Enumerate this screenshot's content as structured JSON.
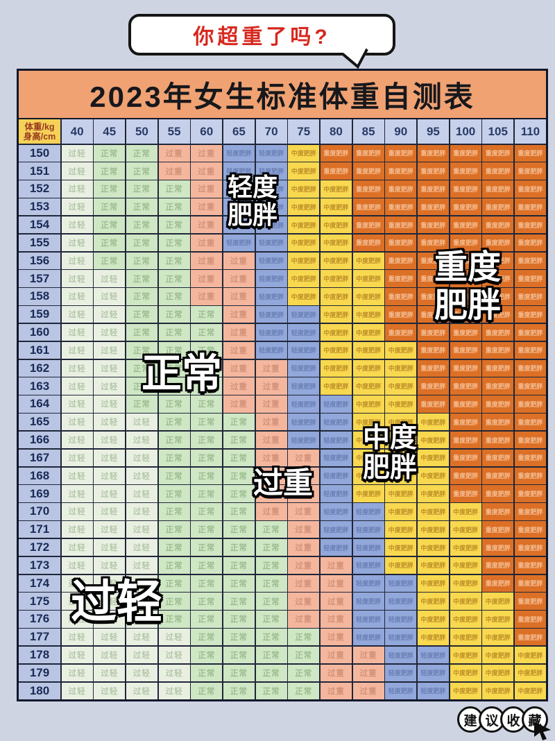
{
  "bubble": {
    "text": "你超重了吗?"
  },
  "title": "2023年女生标准体重自测表",
  "corner": {
    "top": "体重/kg",
    "bottom": "身高/cm"
  },
  "categories": {
    "U": {
      "label": "过轻",
      "bg": "#e9f0e2",
      "fg": "#b3c6a8"
    },
    "N": {
      "label": "正常",
      "bg": "#cfe7c4",
      "fg": "#9cbd90"
    },
    "O": {
      "label": "过重",
      "bg": "#f4b79e",
      "fg": "#d29279"
    },
    "L": {
      "label": "轻度肥胖",
      "bg": "#92a7da",
      "fg": "#6a80b5"
    },
    "M": {
      "label": "中度肥胖",
      "bg": "#f8d84f",
      "fg": "#bd8f28"
    },
    "S": {
      "label": "重度肥胖",
      "bg": "#dc7026",
      "fg": "#f4bd92"
    }
  },
  "overlays": [
    {
      "id": "mild-obese",
      "lines": [
        "轻度",
        "肥胖"
      ]
    },
    {
      "id": "severe-obese",
      "lines": [
        "重度",
        "肥胖"
      ]
    },
    {
      "id": "normal",
      "lines": [
        "正常"
      ]
    },
    {
      "id": "moderate-obese",
      "lines": [
        "中度",
        "肥胖"
      ]
    },
    {
      "id": "overweight",
      "lines": [
        "过重"
      ]
    },
    {
      "id": "underweight",
      "lines": [
        "过轻"
      ]
    }
  ],
  "badge": {
    "chars": [
      "建",
      "议",
      "收",
      "藏"
    ]
  },
  "chart_data": {
    "type": "table",
    "title": "2023年女生标准体重自测表",
    "col_header_label": "体重/kg",
    "row_header_label": "身高/cm",
    "columns_weights_kg": [
      40,
      45,
      50,
      55,
      60,
      65,
      70,
      75,
      80,
      85,
      90,
      95,
      100,
      105,
      110
    ],
    "rows_heights_cm": [
      150,
      151,
      152,
      153,
      154,
      155,
      156,
      157,
      158,
      159,
      160,
      161,
      162,
      163,
      164,
      165,
      166,
      167,
      168,
      169,
      170,
      171,
      172,
      173,
      174,
      175,
      176,
      177,
      178,
      179,
      180
    ],
    "legend": {
      "U": "过轻",
      "N": "正常",
      "O": "过重",
      "L": "轻度肥胖",
      "M": "中度肥胖",
      "S": "重度肥胖"
    },
    "cells": [
      "UNNOOLLMSSSSSSS",
      "UNNOOLLMSSSSSSS",
      "UNNNOLLMMSSSSSS",
      "UNNNOLLMMSSSSSS",
      "UNNNOLLMMSSSSSS",
      "UNNNOLLMMSSSSSS",
      "UNNNOOLMMMSSSSS",
      "UUNNOOLMMMSSSSS",
      "UUNNOOLMMMSSSSS",
      "UUNNNOLLMMSSSSS",
      "UUNNNOLLMMSSSSS",
      "UUNNNOLLMMMSSSS",
      "UUNNNOOLMMMSSSS",
      "UUNNNOOLMMMSSSS",
      "UUNNNOOLLMMSSSS",
      "UUUNNNOLLMMMSSS",
      "UUUNNNOLLMMMSSS",
      "UUUNNNOOLMMMSSS",
      "UUUNNNOOLMMMSSS",
      "UUUNNNOOLMMMSSS",
      "UUUNNNOOLLMMMSS",
      "UUUNNNNOLLMMMSS",
      "UUUNNNNOLLMMMSS",
      "UUUNNNNOOLMMMSS",
      "UUUNNNNOOLLMMSS",
      "UUUNNNNOOLLMMMS",
      "UUUNNNNOOLLMMMS",
      "UUUUNNNNOLLMMMS",
      "UUUUNNNNOOLLMMM",
      "UUUUNNNNOOLLMMM",
      "UUUUNNNNOOLLMMM"
    ]
  }
}
